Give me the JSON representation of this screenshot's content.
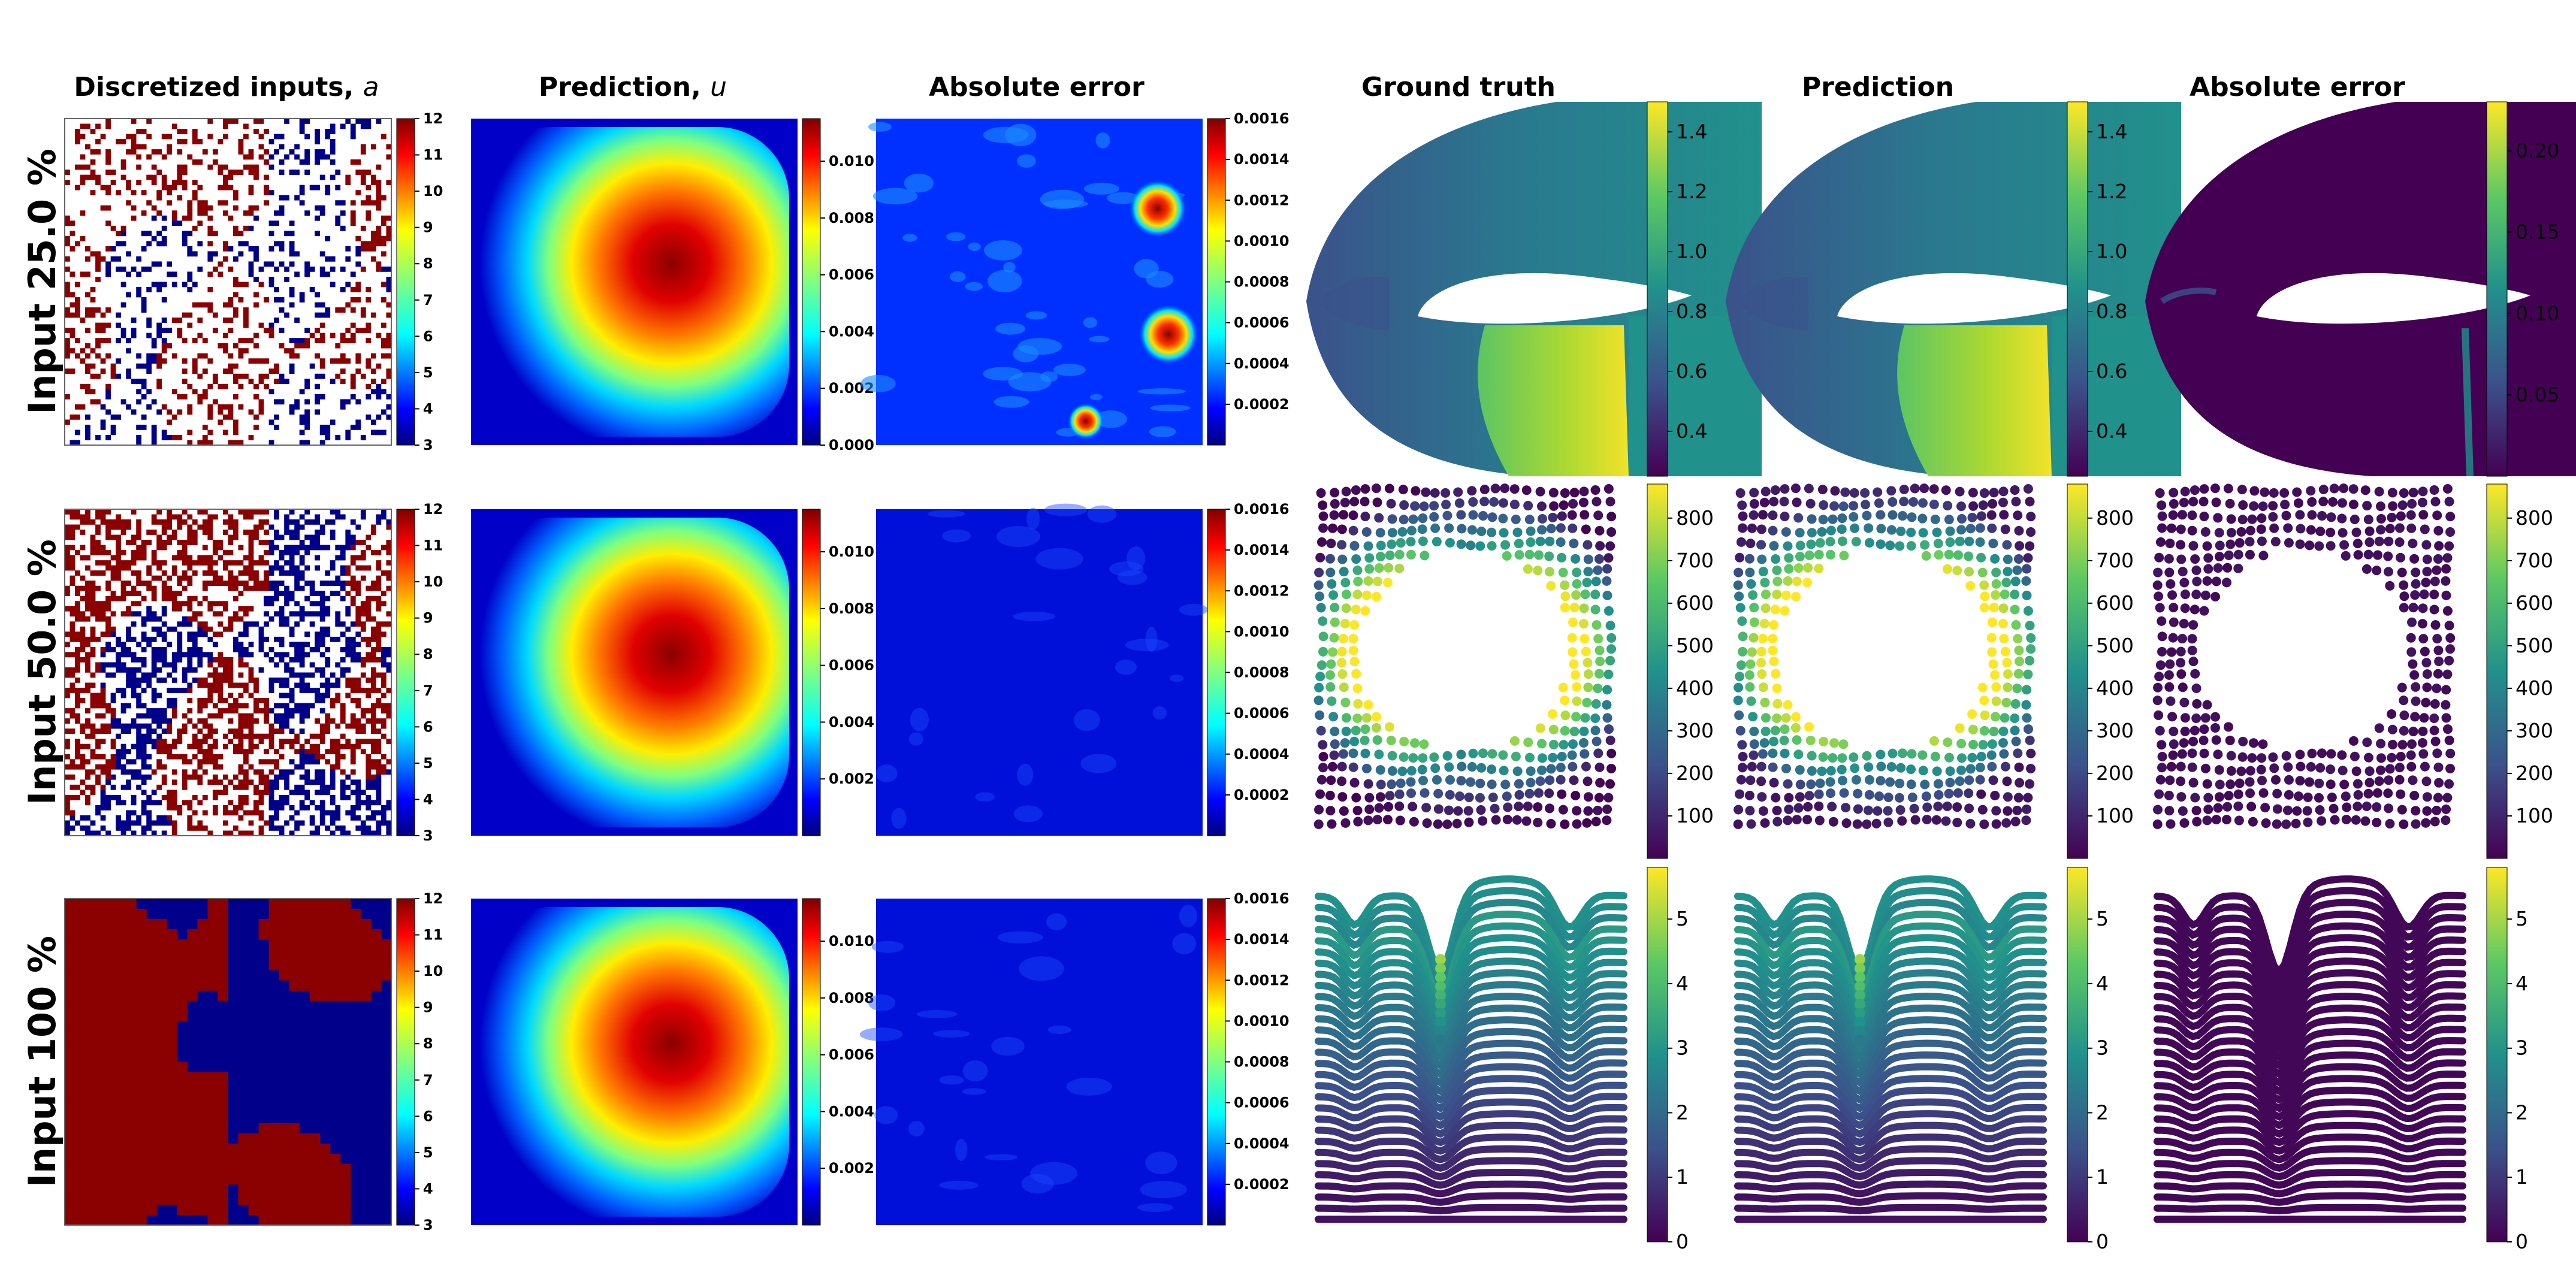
{
  "figure": {
    "column_titles": [
      {
        "text": "Discretized inputs, ",
        "symbol": "a"
      },
      {
        "text": "Prediction, ",
        "symbol": "u"
      },
      {
        "text": "Absolute error",
        "symbol": ""
      },
      {
        "text": "Ground truth",
        "symbol": ""
      },
      {
        "text": "Prediction",
        "symbol": ""
      },
      {
        "text": "Absolute error",
        "symbol": ""
      }
    ],
    "row_labels": [
      "Input 25.0 %",
      "Input 50.0 %",
      "Input 100 %"
    ]
  },
  "colors": {
    "jet": [
      "#000080",
      "#0000ff",
      "#0080ff",
      "#00ffff",
      "#80ff80",
      "#ffff00",
      "#ff8000",
      "#ff0000",
      "#800000"
    ],
    "viridis": [
      "#440154",
      "#3b528b",
      "#21918c",
      "#5ec962",
      "#fde725"
    ],
    "input_low": "#00008b",
    "input_high": "#8b0000",
    "background": "#ffffff"
  },
  "chart_data": [
    {
      "type": "heatmap",
      "name": "discretized-inputs",
      "column": 0,
      "colormap": "jet",
      "vmin": 3,
      "vmax": 12,
      "colorbar_ticks": [
        "3",
        "4",
        "5",
        "6",
        "7",
        "8",
        "9",
        "10",
        "11",
        "12"
      ],
      "observed_fraction": [
        0.25,
        0.5,
        1.0
      ]
    },
    {
      "type": "heatmap",
      "name": "prediction-u",
      "column": 1,
      "colormap": "jet",
      "vmin": 0,
      "vmax": 0.0115,
      "colorbar_ticks_by_row": [
        [
          "0.000",
          "0.002",
          "0.004",
          "0.006",
          "0.008",
          "0.010"
        ],
        [
          "0.002",
          "0.004",
          "0.006",
          "0.008",
          "0.010"
        ],
        [
          "0.002",
          "0.004",
          "0.006",
          "0.008",
          "0.010"
        ]
      ]
    },
    {
      "type": "heatmap",
      "name": "absolute-error-darcy",
      "column": 2,
      "colormap": "jet",
      "vmin": 0,
      "vmax": 0.0016,
      "colorbar_ticks_by_row": [
        [
          "0.0002",
          "0.0004",
          "0.0006",
          "0.0008",
          "0.0010",
          "0.0012",
          "0.0014",
          "0.0016"
        ],
        [
          "0.0002",
          "0.0004",
          "0.0006",
          "0.0008",
          "0.0010",
          "0.0012",
          "0.0014",
          "0.0016"
        ],
        [
          "0.0002",
          "0.0004",
          "0.0006",
          "0.0008",
          "0.0010",
          "0.0012",
          "0.0014",
          "0.0016"
        ]
      ]
    },
    {
      "type": "heatmap",
      "name": "airfoil-mach",
      "row": 0,
      "colormap": "viridis",
      "panels": [
        "Ground truth",
        "Prediction",
        "Absolute error"
      ],
      "truth_range": [
        0.25,
        1.5
      ],
      "truth_ticks": [
        "0.4",
        "0.6",
        "0.8",
        "1.0",
        "1.2",
        "1.4"
      ],
      "error_range": [
        0.0,
        0.23
      ],
      "error_ticks": [
        "0.05",
        "0.10",
        "0.15",
        "0.20"
      ]
    },
    {
      "type": "scatter",
      "name": "plasticity-stress",
      "row": 1,
      "colormap": "viridis",
      "panels": [
        "Ground truth",
        "Prediction",
        "Absolute error"
      ],
      "range": [
        0,
        880
      ],
      "ticks": [
        "100",
        "200",
        "300",
        "400",
        "500",
        "600",
        "700",
        "800"
      ]
    },
    {
      "type": "scatter",
      "name": "elasticity-surface",
      "row": 2,
      "colormap": "viridis",
      "panels": [
        "Ground truth",
        "Prediction",
        "Absolute error"
      ],
      "range": [
        0,
        5.8
      ],
      "ticks": [
        "0",
        "1",
        "2",
        "3",
        "4",
        "5"
      ]
    }
  ]
}
